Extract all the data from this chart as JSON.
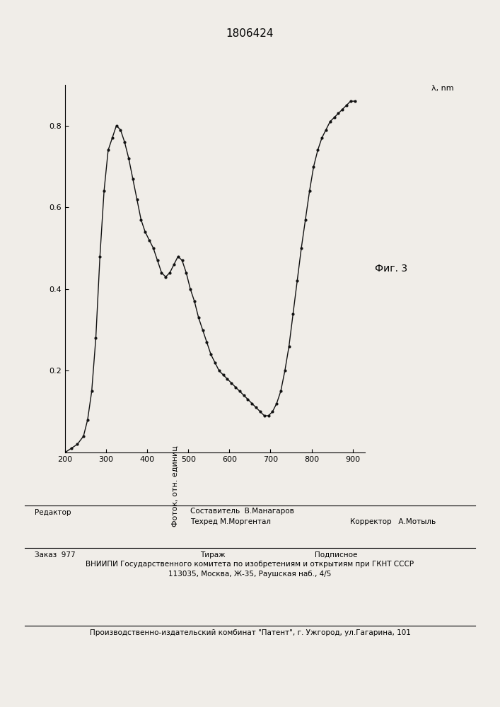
{
  "patent_number": "1806424",
  "fig_label": "Фиг. 3",
  "xlabel": "λ, nm",
  "ylabel": "Фоток, отн. единиц",
  "xlim": [
    200,
    930
  ],
  "ylim": [
    0.0,
    0.9
  ],
  "xticks": [
    200,
    300,
    400,
    500,
    600,
    700,
    800,
    900
  ],
  "yticks": [
    0.2,
    0.4,
    0.6,
    0.8
  ],
  "background_color": "#f0ede8",
  "line_color": "#111111",
  "curve_lambda": [
    200,
    215,
    230,
    245,
    255,
    265,
    275,
    285,
    295,
    305,
    315,
    325,
    335,
    345,
    355,
    365,
    375,
    385,
    395,
    405,
    415,
    425,
    435,
    445,
    455,
    465,
    475,
    485,
    495,
    505,
    515,
    525,
    535,
    545,
    555,
    565,
    575,
    585,
    595,
    605,
    615,
    625,
    635,
    645,
    655,
    665,
    675,
    685,
    695,
    705,
    715,
    725,
    735,
    745,
    755,
    765,
    775,
    785,
    795,
    805,
    815,
    825,
    835,
    845,
    855,
    865,
    875,
    885,
    895,
    905
  ],
  "curve_photocurrent": [
    0.0,
    0.01,
    0.02,
    0.04,
    0.08,
    0.15,
    0.28,
    0.48,
    0.64,
    0.74,
    0.77,
    0.8,
    0.79,
    0.76,
    0.72,
    0.67,
    0.62,
    0.57,
    0.54,
    0.52,
    0.5,
    0.47,
    0.44,
    0.43,
    0.44,
    0.46,
    0.48,
    0.47,
    0.44,
    0.4,
    0.37,
    0.33,
    0.3,
    0.27,
    0.24,
    0.22,
    0.2,
    0.19,
    0.18,
    0.17,
    0.16,
    0.15,
    0.14,
    0.13,
    0.12,
    0.11,
    0.1,
    0.09,
    0.09,
    0.1,
    0.12,
    0.15,
    0.2,
    0.26,
    0.34,
    0.42,
    0.5,
    0.57,
    0.64,
    0.7,
    0.74,
    0.77,
    0.79,
    0.81,
    0.82,
    0.83,
    0.84,
    0.85,
    0.86,
    0.86
  ],
  "footer_line1_left": "Редактор",
  "footer_line1_center": "Составитель  В.Манагаров",
  "footer_line2_center": "Техред М.Моргентал",
  "footer_line2_right": "Корректор   А.Мотыль",
  "footer_line3_left": "Заказ  977",
  "footer_line3_center": "Тираж",
  "footer_line3_right": "Подписное",
  "footer_line4": "ВНИИПИ Государственного комитета по изобретениям и открытиям при ГКНТ СССР",
  "footer_line5": "113035, Москва, Ж-35, Раушская наб., 4/5",
  "footer_line6": "Производственно-издательский комбинат \"Патент\", г. Ужгород, ул.Гагарина, 101"
}
